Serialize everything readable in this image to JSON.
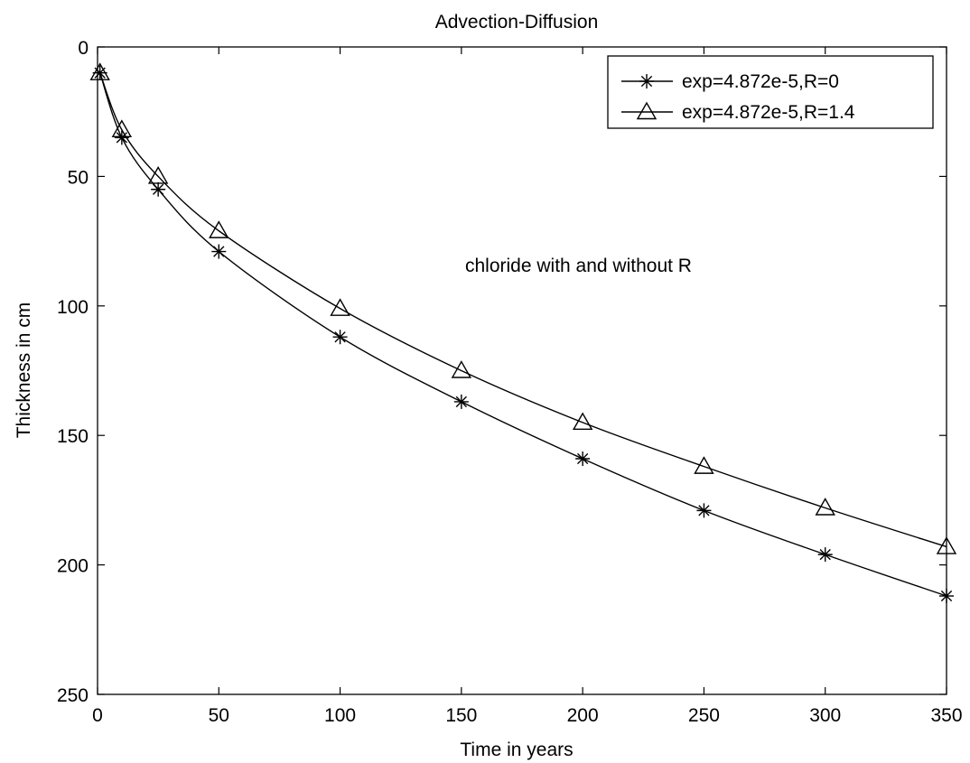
{
  "chart_data": {
    "type": "line",
    "title": "Advection-Diffusion",
    "xlabel": "Time in years",
    "ylabel": "Thickness in cm",
    "xlim": [
      0,
      350
    ],
    "ylim": [
      0,
      250
    ],
    "y_axis_reversed": true,
    "x_ticks": [
      "0",
      "50",
      "100",
      "150",
      "200",
      "250",
      "300",
      "350"
    ],
    "y_ticks": [
      "0",
      "50",
      "100",
      "150",
      "200",
      "250"
    ],
    "grid": false,
    "legend_position": "top-right",
    "annotation": "chloride with and without R",
    "x": [
      1,
      10,
      25,
      50,
      100,
      150,
      200,
      250,
      300,
      350
    ],
    "series": [
      {
        "name": "exp=4.872e-5,R=0",
        "marker": "asterisk",
        "color": "#000000",
        "values": [
          10,
          35,
          55,
          79,
          112,
          137,
          159,
          179,
          196,
          212
        ]
      },
      {
        "name": "exp=4.872e-5,R=1.4",
        "marker": "triangle",
        "color": "#000000",
        "values": [
          10,
          32,
          50,
          71,
          101,
          125,
          145,
          162,
          178,
          193
        ]
      }
    ]
  }
}
